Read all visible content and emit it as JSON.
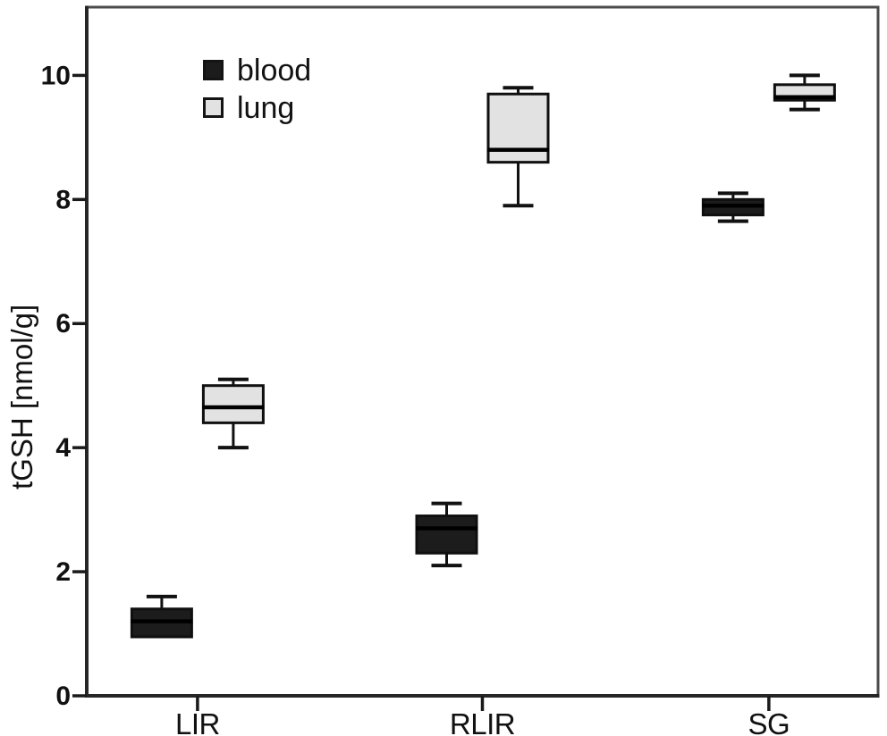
{
  "chart_data": {
    "type": "boxplot",
    "title": "",
    "xlabel": "",
    "ylabel": "tGSH [nmol/g]",
    "ylim": [
      0,
      11.1
    ],
    "yticks": [
      "0",
      "2",
      "4",
      "6",
      "8",
      "10"
    ],
    "ytick_values": [
      0,
      2,
      4,
      6,
      8,
      10
    ],
    "categories": [
      "LIR",
      "RLIR",
      "SG"
    ],
    "grid": false,
    "legend_position": "top-left-inside",
    "colors": {
      "blood_fill": "#1c1c1c",
      "lung_fill": "#e2e2e2",
      "box_stroke": "#0f0f0f",
      "frame_stroke": "#4b4b4b",
      "axis_stroke": "#262626"
    },
    "series": [
      {
        "name": "blood",
        "color": "#1c1c1c",
        "boxes": [
          {
            "category": "LIR",
            "whisker_low": null,
            "q1": 0.95,
            "median": 1.2,
            "q3": 1.4,
            "whisker_high": 1.6
          },
          {
            "category": "RLIR",
            "whisker_low": 2.1,
            "q1": 2.3,
            "median": 2.7,
            "q3": 2.9,
            "whisker_high": 3.1
          },
          {
            "category": "SG",
            "whisker_low": 7.65,
            "q1": 7.75,
            "median": 7.9,
            "q3": 8.0,
            "whisker_high": 8.1
          }
        ]
      },
      {
        "name": "lung",
        "color": "#e2e2e2",
        "boxes": [
          {
            "category": "LIR",
            "whisker_low": 4.0,
            "q1": 4.4,
            "median": 4.65,
            "q3": 5.0,
            "whisker_high": 5.1
          },
          {
            "category": "RLIR",
            "whisker_low": 7.9,
            "q1": 8.6,
            "median": 8.8,
            "q3": 9.7,
            "whisker_high": 9.8
          },
          {
            "category": "SG",
            "whisker_low": 9.45,
            "q1": 9.6,
            "median": 9.65,
            "q3": 9.85,
            "whisker_high": 10.0
          }
        ]
      }
    ]
  }
}
